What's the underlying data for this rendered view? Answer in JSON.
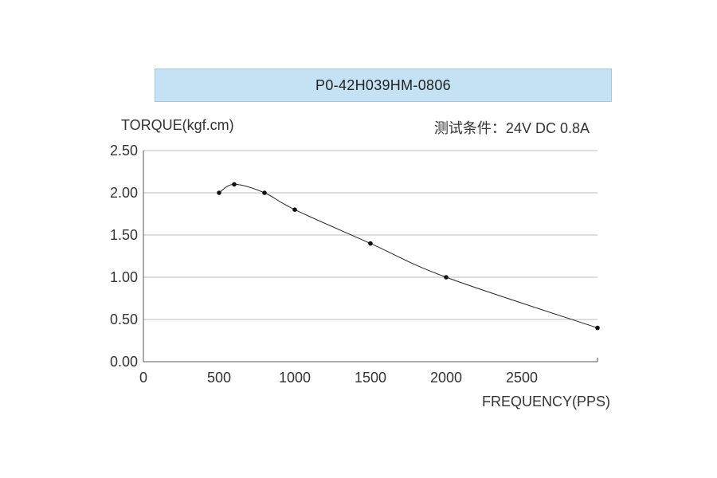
{
  "chart_data": {
    "type": "line",
    "title": "P0-42H039HM-0806",
    "ylabel": "TORQUE(kgf.cm)",
    "xlabel": "FREQUENCY(PPS)",
    "annotation": "测试条件：24V DC   0.8A",
    "xlim": [
      0,
      3000
    ],
    "ylim": [
      0,
      2.5
    ],
    "x_ticks": [
      0,
      500,
      1000,
      1500,
      2000,
      2500
    ],
    "x_tick_labels": [
      "0",
      "500",
      "1000",
      "1500",
      "2000",
      "2500"
    ],
    "y_ticks": [
      0,
      0.5,
      1.0,
      1.5,
      2.0,
      2.5
    ],
    "y_tick_labels": [
      "0.00",
      "0.50",
      "1.00",
      "1.50",
      "2.00",
      "2.50"
    ],
    "grid": "horizontal",
    "series": [
      {
        "x": [
          500,
          600,
          800,
          1000,
          1500,
          2000,
          3000
        ],
        "y": [
          2.0,
          2.1,
          2.0,
          1.8,
          1.4,
          1.0,
          0.4
        ]
      }
    ],
    "colors": {
      "line": "#222222",
      "point": "#111111",
      "grid": "#bbbbbb",
      "axis": "#555555",
      "title_bg": "#c5e2f4"
    }
  }
}
